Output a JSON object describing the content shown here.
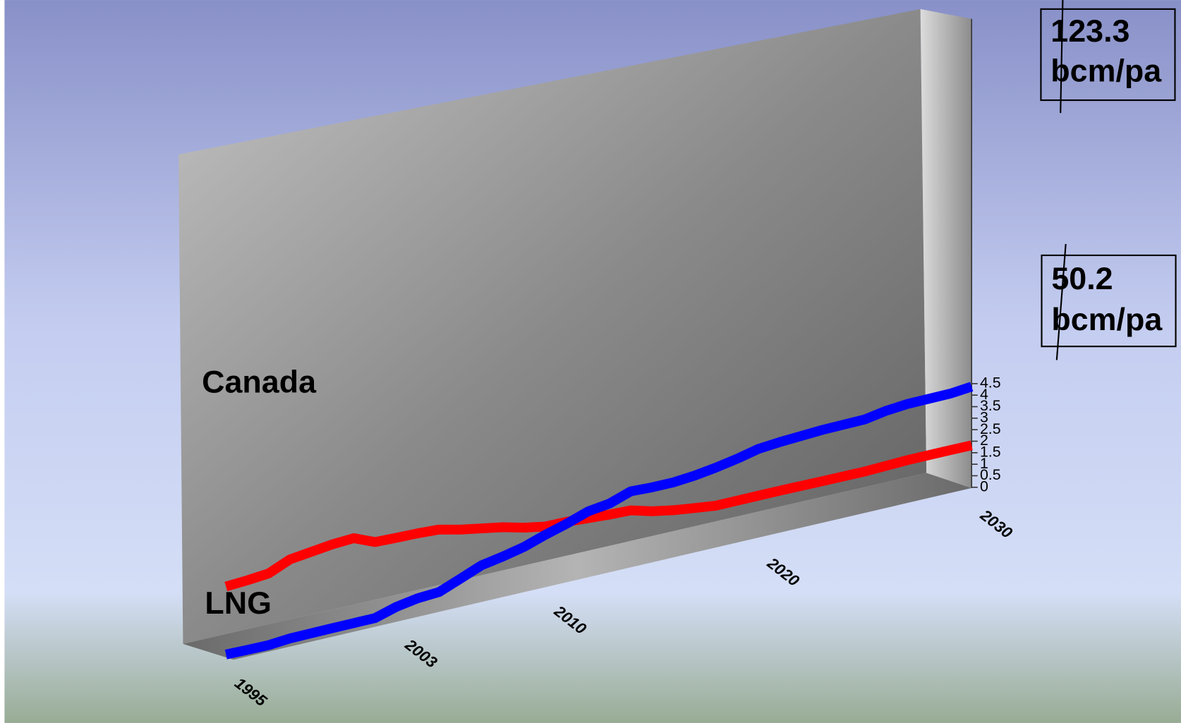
{
  "chart_data": {
    "type": "line",
    "x": [
      1995,
      1996,
      1997,
      1998,
      2000,
      2001,
      2002,
      2003,
      2004,
      2005,
      2006,
      2007,
      2008,
      2009,
      2010,
      2011,
      2012,
      2013,
      2014,
      2015,
      2016,
      2017,
      2018,
      2019,
      2020,
      2021,
      2023,
      2025,
      2026,
      2027,
      2029,
      2030
    ],
    "series": [
      {
        "name": "Canada",
        "color": "#ff0000",
        "values": [
          2.87,
          2.93,
          3.02,
          3.41,
          3.65,
          3.71,
          3.35,
          3.33,
          3.32,
          3.28,
          3.08,
          2.93,
          2.78,
          2.56,
          2.41,
          2.41,
          2.36,
          2.31,
          2.29,
          2.05,
          1.89,
          1.78,
          1.68,
          1.69,
          1.7,
          1.71,
          1.71,
          1.72,
          1.76,
          1.8,
          1.82,
          1.82
        ]
      },
      {
        "name": "LNG",
        "color": "#0000ff",
        "values": [
          0.03,
          0.02,
          0.02,
          0.1,
          0.13,
          0.14,
          0.15,
          0.42,
          0.58,
          0.64,
          1.0,
          1.37,
          1.54,
          1.75,
          2.06,
          2.33,
          2.65,
          2.78,
          3.1,
          3.07,
          3.08,
          3.17,
          3.31,
          3.49,
          3.71,
          3.8,
          3.92,
          3.97,
          4.14,
          4.23,
          4.27,
          4.37
        ]
      }
    ],
    "xlim": [
      1995,
      2030
    ],
    "xticks": [
      1995,
      2003,
      2010,
      2020,
      2030
    ],
    "ylim": [
      0,
      4.5
    ],
    "yticks": [
      0,
      0.5,
      1,
      1.5,
      2,
      2.5,
      3,
      3.5,
      4,
      4.5
    ],
    "annotations": [
      [
        "123.3",
        "bcm/pa"
      ],
      [
        "50.2",
        "bcm/pa"
      ]
    ]
  }
}
